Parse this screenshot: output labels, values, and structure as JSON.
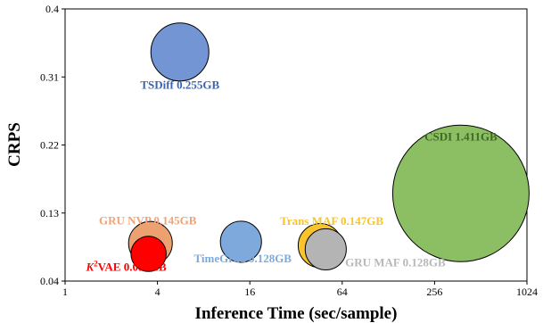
{
  "chart_data": {
    "type": "scatter",
    "title": "",
    "xlabel": "Inference Time (sec/sample)",
    "ylabel": "CRPS",
    "x_scale": "log2",
    "xlim": [
      1,
      1024
    ],
    "ylim": [
      0.04,
      0.4
    ],
    "xticks": [
      1,
      4,
      16,
      64,
      256,
      1024
    ],
    "yticks": [
      0.04,
      0.13,
      0.22,
      0.31,
      0.4
    ],
    "ytick_labels": [
      "0.04",
      "0.13",
      "0.22",
      "0.31",
      "0.4"
    ],
    "xtick_labels": [
      "1",
      "4",
      "16",
      "64",
      "256",
      "1024"
    ],
    "grid": false,
    "size_encoding": "memory (GB)",
    "points": [
      {
        "id": "tsdiff",
        "model": "TSDiff",
        "memory": "0.255GB",
        "memory_gb": 0.255,
        "x": 5.6,
        "y": 0.343,
        "color": "#7395d4"
      },
      {
        "id": "csdi",
        "model": "CSDI",
        "memory": "1.411GB",
        "memory_gb": 1.411,
        "x": 380,
        "y": 0.156,
        "color": "#8cbf63"
      },
      {
        "id": "gru_nvp",
        "model": "GRU NVP",
        "memory": "0.145GB",
        "memory_gb": 0.145,
        "x": 3.6,
        "y": 0.09,
        "color": "#eea170"
      },
      {
        "id": "k2vae",
        "model": "K²VAE",
        "memory": "0.094GB",
        "memory_gb": 0.094,
        "x": 3.5,
        "y": 0.076,
        "color": "#ff0000"
      },
      {
        "id": "timegrad",
        "model": "TimeGrad",
        "memory": "0.128GB",
        "memory_gb": 0.128,
        "x": 14,
        "y": 0.092,
        "color": "#7ea9dc"
      },
      {
        "id": "trans_maf",
        "model": "Trans MAF",
        "memory": "0.147GB",
        "memory_gb": 0.147,
        "x": 46,
        "y": 0.087,
        "color": "#f7c52b"
      },
      {
        "id": "gru_maf",
        "model": "GRU MAF",
        "memory": "0.128GB",
        "memory_gb": 0.128,
        "x": 50,
        "y": 0.082,
        "color": "#b4b4b4"
      }
    ],
    "labels": [
      {
        "id": "tsdiff",
        "text": "TSDiff 0.255GB",
        "color": "#3d64b0"
      },
      {
        "id": "csdi",
        "text": "CSDI 1.411GB",
        "color": "#3e6b24"
      },
      {
        "id": "gru_nvp",
        "text": "GRU NVP 0.145GB",
        "color": "#f2a276"
      },
      {
        "id": "k2vae",
        "text_pre": "K",
        "text_sup": "2",
        "text_post": "VAE 0.094GB",
        "color": "#ff0000"
      },
      {
        "id": "timegrad",
        "text": "TimeGrad 0.128GB",
        "color": "#7ea9dc"
      },
      {
        "id": "trans_maf",
        "text": "Trans MAF 0.147GB",
        "color": "#f7c52b"
      },
      {
        "id": "gru_maf",
        "text": "GRU MAF 0.128GB",
        "color": "#b8b8b8"
      }
    ]
  }
}
